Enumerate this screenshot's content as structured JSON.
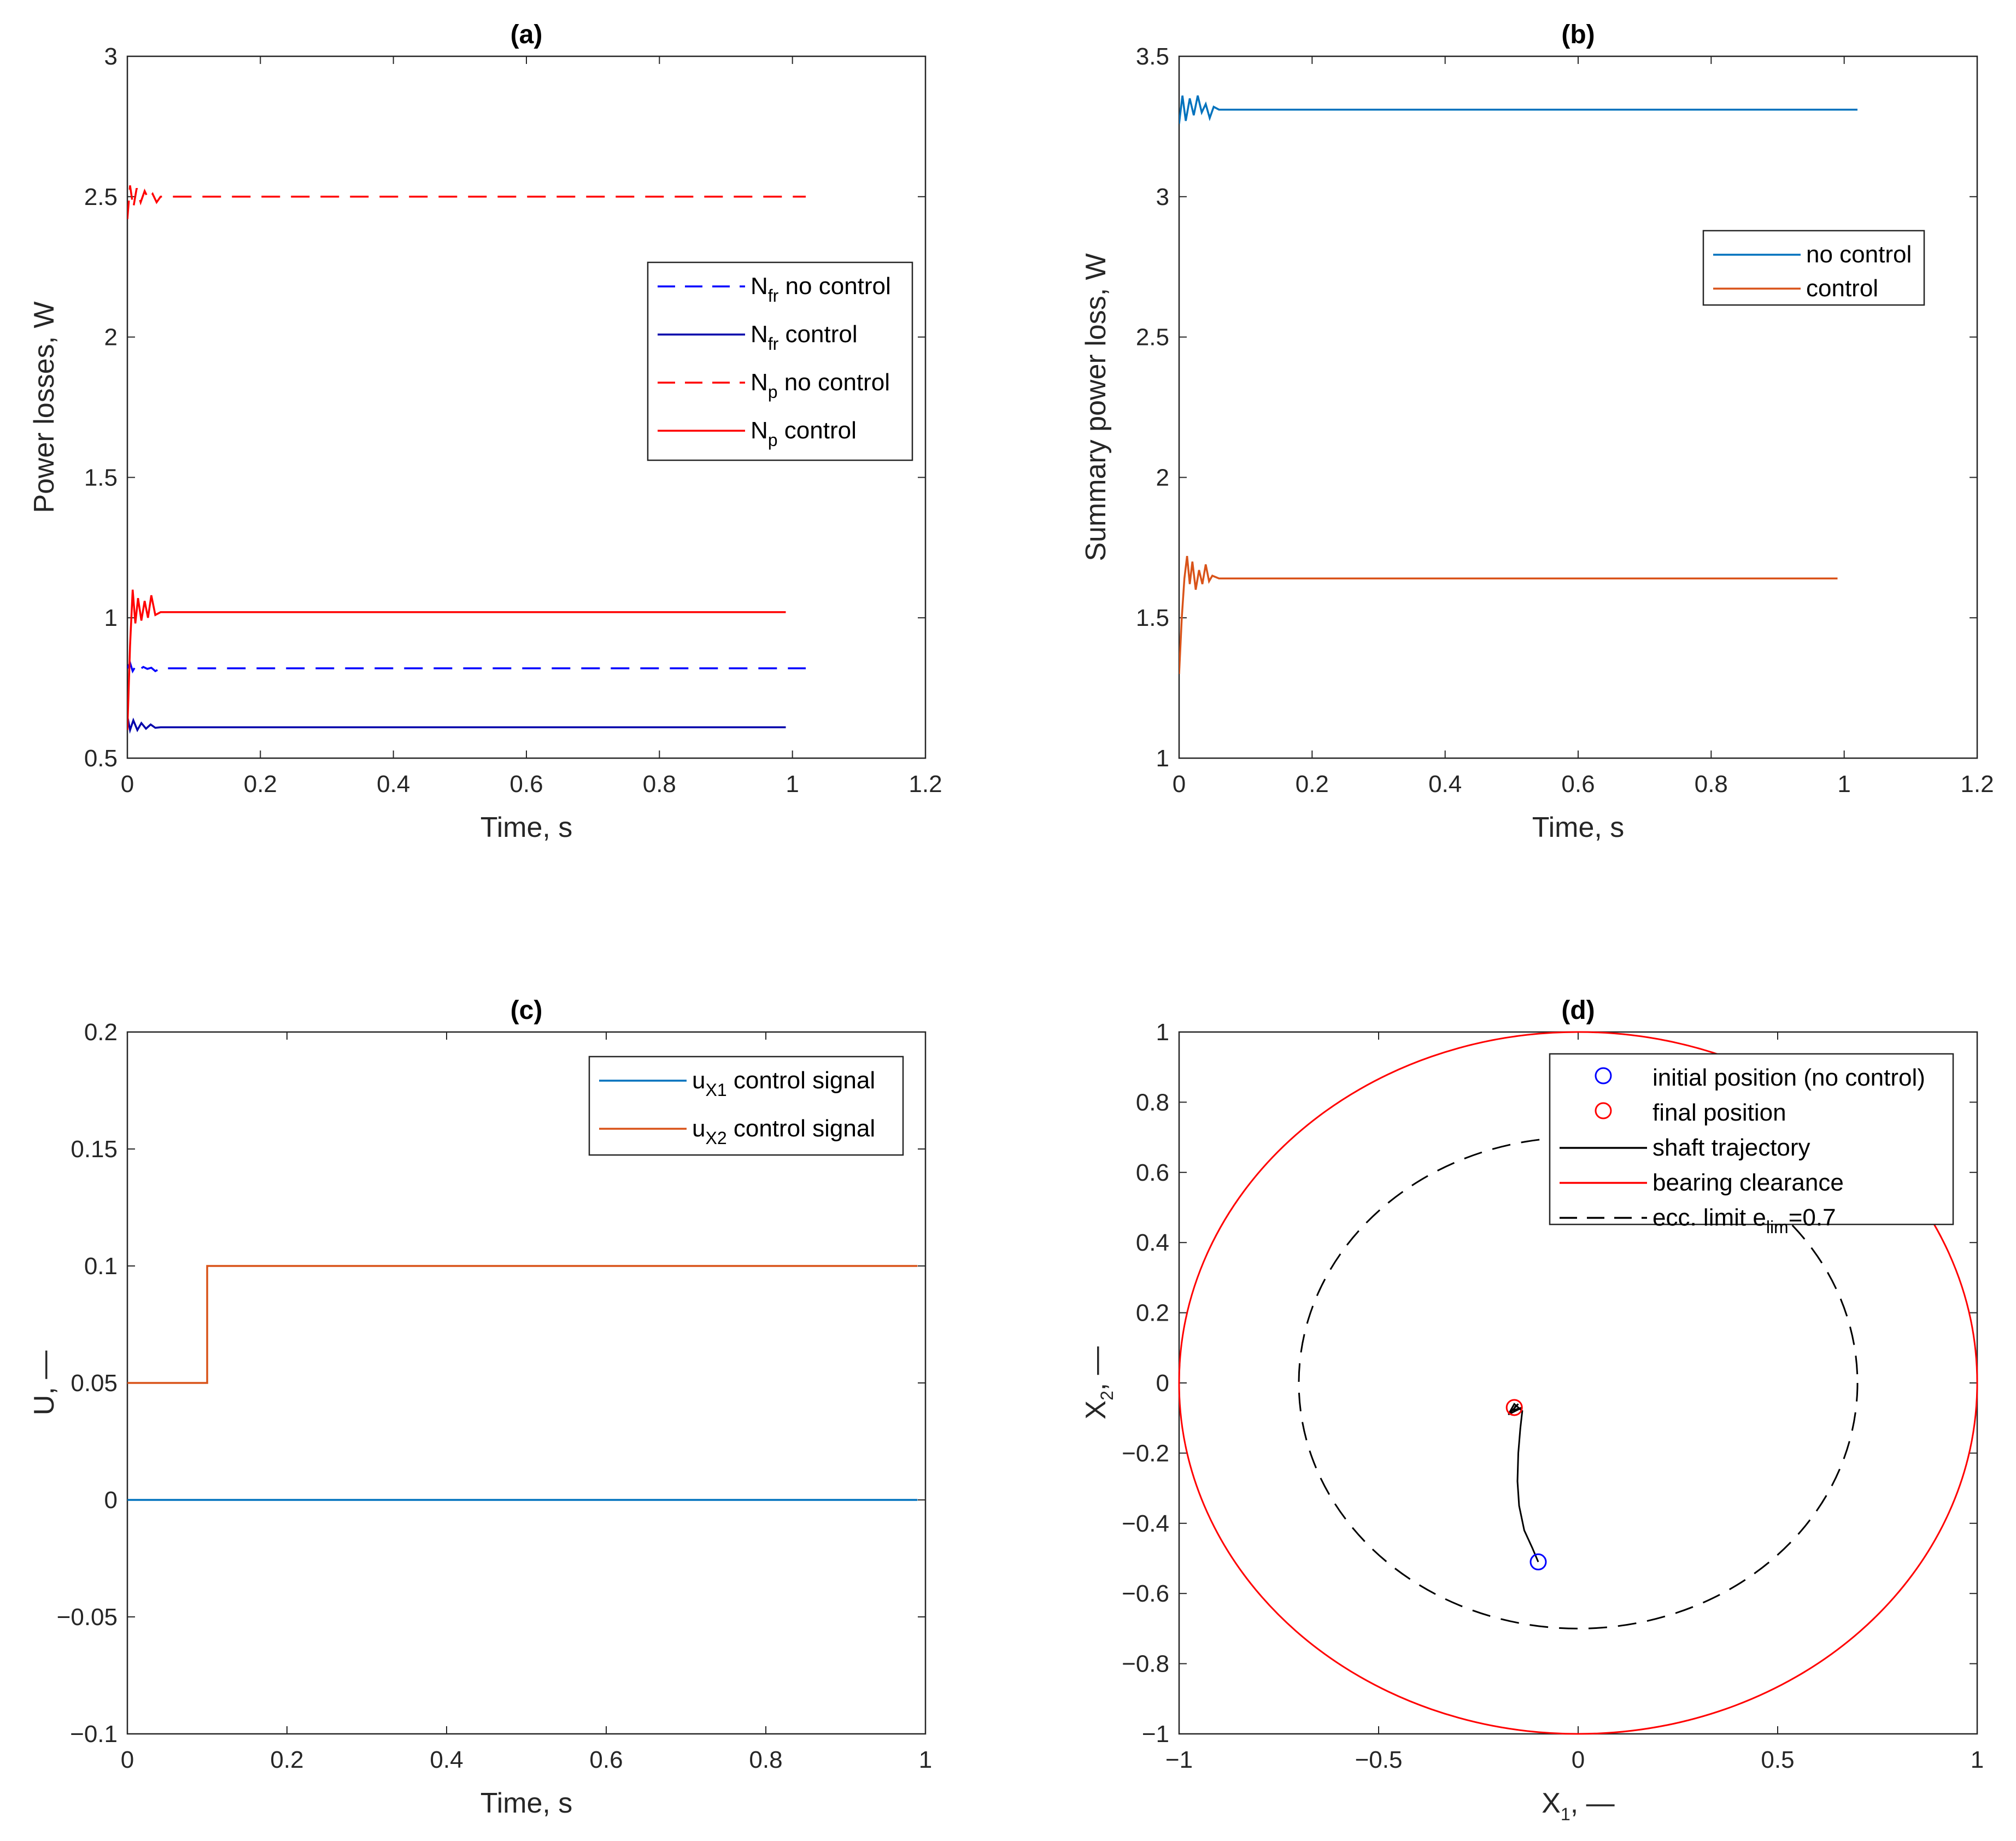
{
  "chart_data": [
    {
      "id": "a",
      "type": "line",
      "title": "(a)",
      "xlabel": "Time, s",
      "ylabel": "Power losses, W",
      "xlim": [
        0,
        1.2
      ],
      "ylim": [
        0.5,
        3
      ],
      "xticks": [
        "0",
        "0.2",
        "0.4",
        "0.6",
        "0.8",
        "1",
        "1.2"
      ],
      "yticks": [
        "0.5",
        "1",
        "1.5",
        "2",
        "2.5",
        "3"
      ],
      "legend_position": "right-middle",
      "series": [
        {
          "name": "N_fr no control",
          "label_main": "N",
          "label_sub": "fr",
          "label_rest": " no control",
          "color": "#0000ff",
          "dash": true,
          "x": [
            0,
            0.004,
            0.008,
            0.013,
            0.018,
            0.024,
            0.03,
            0.036,
            0.042,
            0.05,
            1.02
          ],
          "y": [
            0.82,
            0.84,
            0.81,
            0.83,
            0.815,
            0.825,
            0.818,
            0.822,
            0.81,
            0.82,
            0.82
          ]
        },
        {
          "name": "N_fr control",
          "label_main": "N",
          "label_sub": "fr",
          "label_rest": " control",
          "color": "#0000aa",
          "dash": false,
          "x": [
            0,
            0.004,
            0.009,
            0.015,
            0.021,
            0.028,
            0.035,
            0.042,
            0.05,
            0.99
          ],
          "y": [
            0.65,
            0.6,
            0.635,
            0.6,
            0.625,
            0.605,
            0.62,
            0.608,
            0.61,
            0.61
          ]
        },
        {
          "name": "N_p no control",
          "label_main": "N",
          "label_sub": "p",
          "label_rest": " no control",
          "color": "#ff0000",
          "dash": true,
          "x": [
            0,
            0.004,
            0.009,
            0.014,
            0.02,
            0.026,
            0.032,
            0.038,
            0.044,
            0.05,
            1.02
          ],
          "y": [
            2.42,
            2.54,
            2.46,
            2.53,
            2.48,
            2.52,
            2.49,
            2.51,
            2.48,
            2.5,
            2.5
          ]
        },
        {
          "name": "N_p control",
          "label_main": "N",
          "label_sub": "p",
          "label_rest": " control",
          "color": "#ff0000",
          "dash": false,
          "x": [
            0,
            0.004,
            0.008,
            0.012,
            0.016,
            0.021,
            0.026,
            0.031,
            0.036,
            0.042,
            0.05,
            0.99
          ],
          "y": [
            0.6,
            0.9,
            1.1,
            0.98,
            1.07,
            0.99,
            1.06,
            1.0,
            1.08,
            1.01,
            1.02,
            1.02
          ]
        }
      ]
    },
    {
      "id": "b",
      "type": "line",
      "title": "(b)",
      "xlabel": "Time, s",
      "ylabel": "Summary power loss, W",
      "xlim": [
        0,
        1.2
      ],
      "ylim": [
        1,
        3.5
      ],
      "xticks": [
        "0",
        "0.2",
        "0.4",
        "0.6",
        "0.8",
        "1",
        "1.2"
      ],
      "yticks": [
        "1",
        "1.5",
        "2",
        "2.5",
        "3",
        "3.5"
      ],
      "legend_position": "top-right",
      "series": [
        {
          "name": "no control",
          "color": "#0072bd",
          "x": [
            0,
            0.005,
            0.01,
            0.016,
            0.022,
            0.028,
            0.034,
            0.04,
            0.046,
            0.052,
            0.06,
            0.07,
            1.02
          ],
          "y": [
            3.26,
            3.36,
            3.27,
            3.35,
            3.29,
            3.36,
            3.3,
            3.33,
            3.28,
            3.32,
            3.31,
            3.31,
            3.31
          ]
        },
        {
          "name": "control",
          "color": "#d95319",
          "x": [
            0,
            0.004,
            0.008,
            0.012,
            0.016,
            0.02,
            0.025,
            0.03,
            0.035,
            0.04,
            0.045,
            0.05,
            0.06,
            0.99
          ],
          "y": [
            1.3,
            1.5,
            1.64,
            1.72,
            1.62,
            1.7,
            1.6,
            1.67,
            1.62,
            1.69,
            1.63,
            1.65,
            1.64,
            1.64
          ]
        }
      ]
    },
    {
      "id": "c",
      "type": "line",
      "title": "(c)",
      "xlabel": "Time, s",
      "ylabel": "U, —",
      "xlim": [
        0,
        1
      ],
      "ylim": [
        -0.1,
        0.2
      ],
      "xticks": [
        "0",
        "0.2",
        "0.4",
        "0.6",
        "0.8",
        "1"
      ],
      "yticks": [
        "-0.1",
        "-0.05",
        "0",
        "0.05",
        "0.1",
        "0.15",
        "0.2"
      ],
      "legend_position": "top-right",
      "series": [
        {
          "name": "u_X1 control signal",
          "label_main": "u",
          "label_sub": "X1",
          "label_rest": " control signal",
          "color": "#0072bd",
          "x": [
            0,
            0.99
          ],
          "y": [
            0,
            0
          ]
        },
        {
          "name": "u_X2 control signal",
          "label_main": "u",
          "label_sub": "X2",
          "label_rest": " control signal",
          "color": "#d95319",
          "x": [
            0,
            0.1,
            0.1,
            0.99
          ],
          "y": [
            0.05,
            0.05,
            0.1,
            0.1
          ]
        }
      ]
    },
    {
      "id": "d",
      "type": "scatter",
      "title": "(d)",
      "xlabel": "X",
      "xlabel_sub": "1",
      "xlabel_rest": ", —",
      "ylabel": "X",
      "ylabel_sub": "2",
      "ylabel_rest": ", —",
      "xlim": [
        -1,
        1
      ],
      "ylim": [
        -1,
        1
      ],
      "xticks": [
        "-1",
        "-0.5",
        "0",
        "0.5",
        "1"
      ],
      "yticks": [
        "-1",
        "-0.8",
        "-0.6",
        "-0.4",
        "-0.2",
        "0",
        "0.2",
        "0.4",
        "0.6",
        "0.8",
        "1"
      ],
      "legend_position": "top-right",
      "initial_position": {
        "x": -0.1,
        "y": -0.51,
        "color": "#0000ff"
      },
      "final_position": {
        "x": -0.16,
        "y": -0.07,
        "color": "#ff0000"
      },
      "trajectory": {
        "x": [
          -0.1,
          -0.115,
          -0.135,
          -0.148,
          -0.152,
          -0.15,
          -0.145,
          -0.14,
          -0.16,
          -0.17,
          -0.14,
          -0.175,
          -0.15,
          -0.16
        ],
        "y": [
          -0.51,
          -0.47,
          -0.42,
          -0.35,
          -0.28,
          -0.2,
          -0.13,
          -0.08,
          -0.06,
          -0.08,
          -0.07,
          -0.09,
          -0.06,
          -0.07
        ],
        "color": "#000000"
      },
      "clearance_radius": 1,
      "ecc_limit_radius": 0.7,
      "legend": [
        {
          "label": "initial position (no control)",
          "kind": "circle",
          "color": "#0000ff"
        },
        {
          "label": "final position",
          "kind": "circle",
          "color": "#ff0000"
        },
        {
          "label": "shaft trajectory",
          "kind": "line",
          "color": "#000000"
        },
        {
          "label": "bearing clearance",
          "kind": "line",
          "color": "#ff0000"
        },
        {
          "label": "ecc. limit e",
          "label_sub": "lim",
          "label_rest": "=0.7",
          "kind": "dash",
          "color": "#000000"
        }
      ]
    }
  ]
}
